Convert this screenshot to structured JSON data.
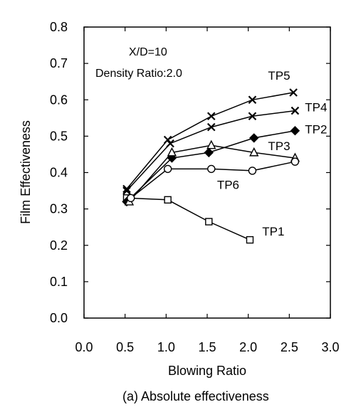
{
  "chart_data": {
    "type": "line",
    "xlabel": "Blowing Ratio",
    "ylabel": "Film Effectiveness",
    "caption": "(a) Absolute effectiveness",
    "xlim": [
      0.0,
      3.0
    ],
    "ylim": [
      0.0,
      0.8
    ],
    "x_ticks": [
      "0.0",
      "0.5",
      "1.0",
      "1.5",
      "2.0",
      "2.5",
      "3.0"
    ],
    "y_ticks": [
      "0.0",
      "0.1",
      "0.2",
      "0.3",
      "0.4",
      "0.5",
      "0.6",
      "0.7",
      "0.8"
    ],
    "grid": false,
    "annotations": [
      "X/D=10",
      "Density Ratio:2.0"
    ],
    "series": [
      {
        "name": "TP1",
        "marker": "open-square",
        "x": [
          0.52,
          1.02,
          1.52,
          2.02
        ],
        "y": [
          0.33,
          0.325,
          0.265,
          0.215
        ]
      },
      {
        "name": "TP2",
        "marker": "filled-diamond",
        "x": [
          0.52,
          1.07,
          1.52,
          2.07,
          2.57
        ],
        "y": [
          0.32,
          0.44,
          0.455,
          0.495,
          0.515
        ]
      },
      {
        "name": "TP3",
        "marker": "open-triangle",
        "x": [
          0.55,
          1.07,
          1.55,
          2.07,
          2.57
        ],
        "y": [
          0.32,
          0.455,
          0.475,
          0.455,
          0.44
        ]
      },
      {
        "name": "TP4",
        "marker": "cross",
        "x": [
          0.52,
          1.05,
          1.55,
          2.05,
          2.57
        ],
        "y": [
          0.35,
          0.48,
          0.525,
          0.555,
          0.57
        ]
      },
      {
        "name": "TP5",
        "marker": "cross",
        "x": [
          0.52,
          1.02,
          1.55,
          2.05,
          2.55
        ],
        "y": [
          0.355,
          0.49,
          0.555,
          0.6,
          0.62
        ]
      },
      {
        "name": "TP6",
        "marker": "open-circle",
        "x": [
          0.57,
          1.02,
          1.55,
          2.05,
          2.57
        ],
        "y": [
          0.33,
          0.41,
          0.41,
          0.405,
          0.43
        ]
      }
    ]
  }
}
